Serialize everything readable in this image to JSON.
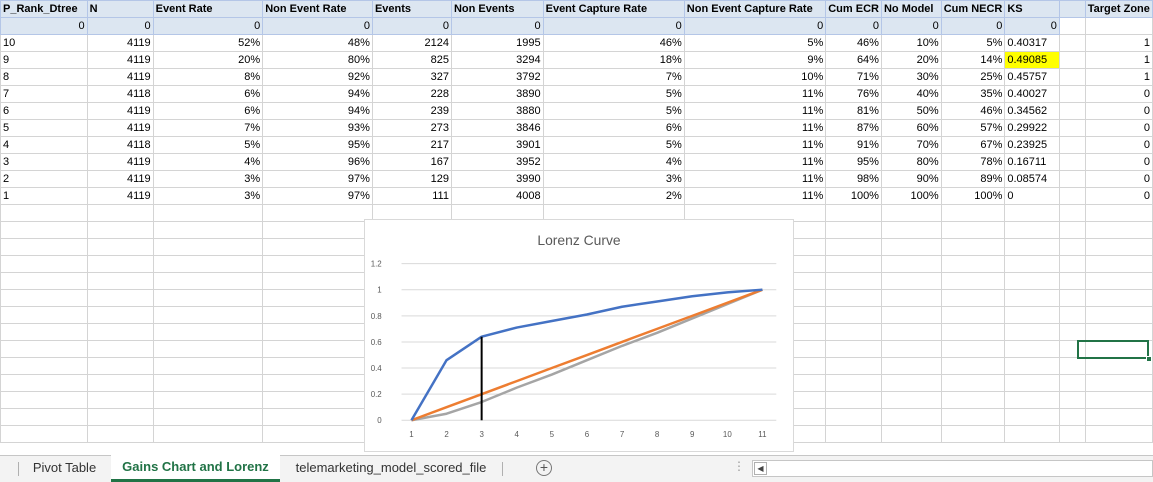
{
  "sheet": {
    "headers": [
      "P_Rank_Dtree",
      "N",
      "Event Rate",
      "Non Event Rate",
      "Events",
      "Non Events",
      "Event Capture Rate",
      "Non Event Capture Rate",
      "Cum ECR",
      "No Model",
      "Cum NECR",
      "KS",
      "",
      "Target Zone"
    ],
    "zero_row": [
      "0",
      "0",
      "0",
      "0",
      "0",
      "0",
      "0",
      "0",
      "0",
      "0",
      "0",
      "0"
    ],
    "rows": [
      {
        "rank": "10",
        "n": "4119",
        "er": "52%",
        "ner": "48%",
        "ev": "2124",
        "nev": "1995",
        "ecr": "46%",
        "necr": "5%",
        "cecr": "46%",
        "nm": "10%",
        "cnecr": "5%",
        "ks": "0.40317",
        "tz": "1"
      },
      {
        "rank": "9",
        "n": "4119",
        "er": "20%",
        "ner": "80%",
        "ev": "825",
        "nev": "3294",
        "ecr": "18%",
        "necr": "9%",
        "cecr": "64%",
        "nm": "20%",
        "cnecr": "14%",
        "ks": "0.49085",
        "tz": "1"
      },
      {
        "rank": "8",
        "n": "4119",
        "er": "8%",
        "ner": "92%",
        "ev": "327",
        "nev": "3792",
        "ecr": "7%",
        "necr": "10%",
        "cecr": "71%",
        "nm": "30%",
        "cnecr": "25%",
        "ks": "0.45757",
        "tz": "1"
      },
      {
        "rank": "7",
        "n": "4118",
        "er": "6%",
        "ner": "94%",
        "ev": "228",
        "nev": "3890",
        "ecr": "5%",
        "necr": "11%",
        "cecr": "76%",
        "nm": "40%",
        "cnecr": "35%",
        "ks": "0.40027",
        "tz": "0"
      },
      {
        "rank": "6",
        "n": "4119",
        "er": "6%",
        "ner": "94%",
        "ev": "239",
        "nev": "3880",
        "ecr": "5%",
        "necr": "11%",
        "cecr": "81%",
        "nm": "50%",
        "cnecr": "46%",
        "ks": "0.34562",
        "tz": "0"
      },
      {
        "rank": "5",
        "n": "4119",
        "er": "7%",
        "ner": "93%",
        "ev": "273",
        "nev": "3846",
        "ecr": "6%",
        "necr": "11%",
        "cecr": "87%",
        "nm": "60%",
        "cnecr": "57%",
        "ks": "0.29922",
        "tz": "0"
      },
      {
        "rank": "4",
        "n": "4118",
        "er": "5%",
        "ner": "95%",
        "ev": "217",
        "nev": "3901",
        "ecr": "5%",
        "necr": "11%",
        "cecr": "91%",
        "nm": "70%",
        "cnecr": "67%",
        "ks": "0.23925",
        "tz": "0"
      },
      {
        "rank": "3",
        "n": "4119",
        "er": "4%",
        "ner": "96%",
        "ev": "167",
        "nev": "3952",
        "ecr": "4%",
        "necr": "11%",
        "cecr": "95%",
        "nm": "80%",
        "cnecr": "78%",
        "ks": "0.16711",
        "tz": "0"
      },
      {
        "rank": "2",
        "n": "4119",
        "er": "3%",
        "ner": "97%",
        "ev": "129",
        "nev": "3990",
        "ecr": "3%",
        "necr": "11%",
        "cecr": "98%",
        "nm": "90%",
        "cnecr": "89%",
        "ks": "0.08574",
        "tz": "0"
      },
      {
        "rank": "1",
        "n": "4119",
        "er": "3%",
        "ner": "97%",
        "ev": "111",
        "nev": "4008",
        "ecr": "2%",
        "necr": "11%",
        "cecr": "100%",
        "nm": "100%",
        "cnecr": "100%",
        "ks": "0",
        "tz": "0"
      }
    ],
    "highlight_color": "#ffff00",
    "header_fill": "#dce6f1"
  },
  "chart_data": {
    "type": "line",
    "title": "Lorenz Curve",
    "x": [
      1,
      2,
      3,
      4,
      5,
      6,
      7,
      8,
      9,
      10,
      11
    ],
    "x_tick_labels": [
      "1",
      "2",
      "3",
      "4",
      "5",
      "6",
      "7",
      "8",
      "9",
      "10",
      "11"
    ],
    "y_tick_labels": [
      "0",
      "0.2",
      "0.4",
      "0.6",
      "0.8",
      "1",
      "1.2"
    ],
    "ylim": [
      0,
      1.2
    ],
    "grid": true,
    "series": [
      {
        "color": "#4472c4",
        "values": [
          0,
          0.46,
          0.64,
          0.71,
          0.76,
          0.81,
          0.87,
          0.91,
          0.95,
          0.98,
          1.0
        ]
      },
      {
        "color": "#ed7d31",
        "values": [
          0,
          0.1,
          0.2,
          0.3,
          0.4,
          0.5,
          0.6,
          0.7,
          0.8,
          0.9,
          1.0
        ]
      },
      {
        "color": "#a5a5a5",
        "values": [
          0,
          0.05,
          0.14,
          0.25,
          0.35,
          0.46,
          0.57,
          0.67,
          0.78,
          0.89,
          1.0
        ]
      }
    ],
    "ks_marker": {
      "x": 3,
      "y_from": 0,
      "y_to": 0.64,
      "color": "#000000"
    }
  },
  "tabs": [
    {
      "label": "Pivot Table",
      "active": false
    },
    {
      "label": "Gains Chart and Lorenz",
      "active": true
    },
    {
      "label": "telemarketing_model_scored_file",
      "active": false
    }
  ],
  "tabbar": {
    "add_symbol": "+",
    "dots": "⋮",
    "scroll_left": "◀"
  },
  "accent_color": "#217346"
}
